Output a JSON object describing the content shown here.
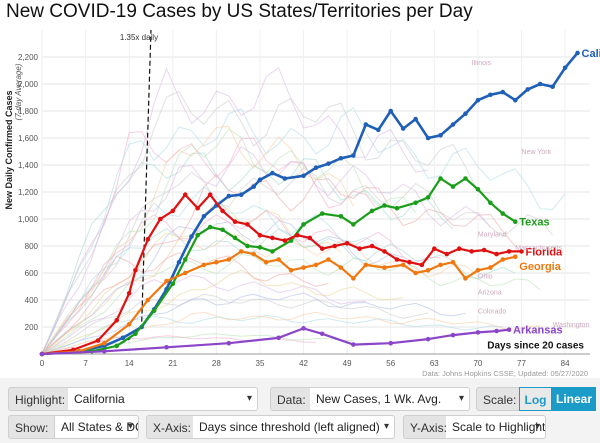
{
  "page": {
    "title": "New COVID-19 Cases by US States/Territories per Day"
  },
  "chart_data": {
    "type": "line",
    "title": "New COVID-19 Cases by US States/Territories per Day",
    "ylabel": "New Daily Confirmed Cases",
    "ylabel_sub": "(7-day Average)",
    "xlabel": "Days since 20 cases",
    "xlim": [
      0,
      88
    ],
    "ylim": [
      0,
      2400
    ],
    "xticks": [
      0,
      7,
      14,
      21,
      28,
      35,
      42,
      49,
      56,
      63,
      70,
      77,
      84
    ],
    "yticks": [
      200,
      400,
      600,
      800,
      1000,
      1200,
      1400,
      1600,
      1800,
      2000,
      2200
    ],
    "grid": true,
    "reference_line": {
      "label": "1.35x daily",
      "x": [
        0,
        5,
        9,
        12,
        14,
        16,
        17.5
      ],
      "y": [
        0,
        7,
        25,
        60,
        110,
        210,
        2400
      ]
    },
    "source": "Data: Johns Hopkins CSSE; Updated: 05/27/2020",
    "credit": "Interactive Visualization: https://91-DIVOC.com/ by @profwade_",
    "series": [
      {
        "name": "California",
        "color": "#1f5fb7",
        "x": [
          0,
          6,
          10,
          13,
          16,
          18,
          20,
          22,
          24,
          26,
          28,
          30,
          32,
          34,
          35,
          37,
          39,
          42,
          44,
          46,
          48,
          50,
          52,
          54,
          56,
          58,
          60,
          62,
          64,
          66,
          68,
          70,
          72,
          74,
          76,
          78,
          80,
          82,
          84,
          86
        ],
        "y": [
          0,
          20,
          60,
          120,
          200,
          330,
          480,
          680,
          870,
          1020,
          1100,
          1170,
          1180,
          1240,
          1290,
          1340,
          1300,
          1320,
          1380,
          1410,
          1450,
          1470,
          1700,
          1660,
          1800,
          1670,
          1740,
          1600,
          1620,
          1700,
          1780,
          1880,
          1920,
          1940,
          1880,
          1960,
          2000,
          1980,
          2120,
          2230
        ]
      },
      {
        "name": "Texas",
        "color": "#1a9e1a",
        "x": [
          0,
          8,
          12,
          15,
          18,
          21,
          23,
          25,
          27,
          29,
          31,
          33,
          35,
          37,
          40,
          42,
          45,
          48,
          50,
          53,
          55,
          57,
          60,
          62,
          64,
          66,
          68,
          70,
          72,
          74,
          76
        ],
        "y": [
          0,
          20,
          60,
          150,
          320,
          520,
          700,
          880,
          940,
          920,
          860,
          800,
          790,
          760,
          840,
          960,
          1040,
          1020,
          960,
          1060,
          1100,
          1080,
          1120,
          1160,
          1300,
          1240,
          1300,
          1220,
          1120,
          1040,
          980
        ]
      },
      {
        "name": "Florida",
        "color": "#e01010",
        "x": [
          0,
          5,
          9,
          12,
          14,
          15,
          17,
          19,
          21,
          23,
          25,
          27,
          29,
          31,
          33,
          35,
          37,
          39,
          41,
          43,
          45,
          47,
          49,
          51,
          53,
          55,
          57,
          59,
          61,
          63,
          65,
          67,
          69,
          71,
          73,
          75,
          77
        ],
        "y": [
          0,
          30,
          100,
          250,
          450,
          620,
          850,
          1000,
          1060,
          1180,
          1080,
          1180,
          1060,
          980,
          960,
          880,
          860,
          840,
          880,
          860,
          780,
          800,
          820,
          780,
          800,
          760,
          700,
          680,
          660,
          780,
          740,
          780,
          760,
          770,
          740,
          760,
          760
        ]
      },
      {
        "name": "Georgia",
        "color": "#f07810",
        "x": [
          0,
          6,
          10,
          14,
          17,
          20,
          23,
          26,
          28,
          30,
          32,
          34,
          36,
          38,
          40,
          42,
          44,
          46,
          48,
          50,
          52,
          55,
          58,
          60,
          62,
          64,
          66,
          68,
          70,
          72,
          74,
          76
        ],
        "y": [
          0,
          20,
          80,
          220,
          400,
          540,
          600,
          660,
          680,
          700,
          760,
          740,
          680,
          700,
          620,
          640,
          660,
          700,
          640,
          560,
          660,
          640,
          660,
          600,
          620,
          660,
          680,
          560,
          620,
          640,
          700,
          720
        ]
      },
      {
        "name": "Arkansas",
        "color": "#8b45c8",
        "x": [
          0,
          10,
          20,
          30,
          38,
          42,
          45,
          50,
          56,
          62,
          66,
          70,
          73,
          75
        ],
        "y": [
          0,
          20,
          50,
          80,
          120,
          190,
          150,
          70,
          80,
          110,
          140,
          160,
          170,
          180
        ]
      }
    ],
    "background_labels": [
      "Illinois",
      "New York",
      "Maryland",
      "Massachusetts",
      "Ohio",
      "Arizona",
      "Colorado",
      "Washington"
    ]
  },
  "controls": {
    "highlight": {
      "label": "Highlight:",
      "value": "California"
    },
    "data": {
      "label": "Data:",
      "value": "New Cases, 1 Wk. Avg."
    },
    "scale": {
      "label": "Scale:",
      "log": "Log",
      "linear": "Linear"
    },
    "show": {
      "label": "Show:",
      "value": "All States & DC"
    },
    "xaxis": {
      "label": "X-Axis:",
      "value": "Days since threshold (left aligned)"
    },
    "yaxis": {
      "label": "Y-Axis:",
      "value": "Scale to Highlight"
    },
    "caret": "▾",
    "colors": {
      "active_bg": "#1a9bc8",
      "active_fg": "#ffffff"
    }
  }
}
